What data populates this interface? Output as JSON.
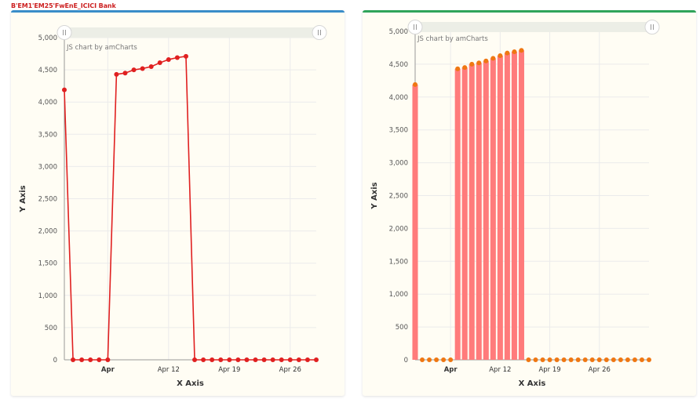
{
  "page": {
    "title": "B'EM1'EM25'FwEnE_ICICI Bank"
  },
  "colors": {
    "line": "#e02020",
    "bar": "#ff7b7b",
    "bullet": "#ef7712",
    "left_accent": "#3a8dc9",
    "right_accent": "#2fa45a"
  },
  "chart_data": [
    {
      "type": "line",
      "title": "",
      "credit": "JS chart by amCharts",
      "xlabel": "X Axis",
      "ylabel": "Y Axis",
      "ylim": [
        0,
        5000
      ],
      "yticks": [
        "0",
        "500",
        "1,000",
        "1,500",
        "2,000",
        "2,500",
        "3,000",
        "3,500",
        "4,000",
        "4,500",
        "5,000"
      ],
      "xticks": [
        {
          "day": 6,
          "label": "Apr",
          "bold": true
        },
        {
          "day": 13,
          "label": "Apr 12",
          "bold": false
        },
        {
          "day": 20,
          "label": "Apr 19",
          "bold": false
        },
        {
          "day": 27,
          "label": "Apr 26",
          "bold": false
        }
      ],
      "x": [
        1,
        2,
        3,
        4,
        5,
        6,
        7,
        8,
        9,
        10,
        11,
        12,
        13,
        14,
        15,
        16,
        17,
        18,
        19,
        20,
        21,
        22,
        23,
        24,
        25,
        26,
        27,
        28,
        29,
        30
      ],
      "values": [
        4190,
        0,
        0,
        0,
        0,
        0,
        4430,
        4450,
        4500,
        4520,
        4550,
        4610,
        4660,
        4690,
        4710,
        0,
        0,
        0,
        0,
        0,
        0,
        0,
        0,
        0,
        0,
        0,
        0,
        0,
        0,
        0
      ]
    },
    {
      "type": "bar",
      "title": "",
      "credit": "JS chart by amCharts",
      "xlabel": "X Axis",
      "ylabel": "Y Axis",
      "ylim": [
        0,
        5000
      ],
      "yticks": [
        "0",
        "500",
        "1,000",
        "1,500",
        "2,000",
        "2,500",
        "3,000",
        "3,500",
        "4,000",
        "4,500",
        "5,000"
      ],
      "xticks": [
        {
          "day": 6,
          "label": "Apr",
          "bold": true
        },
        {
          "day": 13,
          "label": "Apr 12",
          "bold": false
        },
        {
          "day": 20,
          "label": "Apr 19",
          "bold": false
        },
        {
          "day": 27,
          "label": "Apr 26",
          "bold": false
        }
      ],
      "x": [
        1,
        2,
        3,
        4,
        5,
        6,
        7,
        8,
        9,
        10,
        11,
        12,
        13,
        14,
        15,
        16,
        17,
        18,
        19,
        20,
        21,
        22,
        23,
        24,
        25,
        26,
        27,
        28,
        29,
        30,
        31,
        32,
        33,
        34
      ],
      "values": [
        4190,
        0,
        0,
        0,
        0,
        0,
        4430,
        4450,
        4500,
        4520,
        4550,
        4590,
        4630,
        4670,
        4690,
        4710,
        0,
        0,
        0,
        0,
        0,
        0,
        0,
        0,
        0,
        0,
        0,
        0,
        0,
        0,
        0,
        0,
        0,
        0
      ]
    }
  ]
}
